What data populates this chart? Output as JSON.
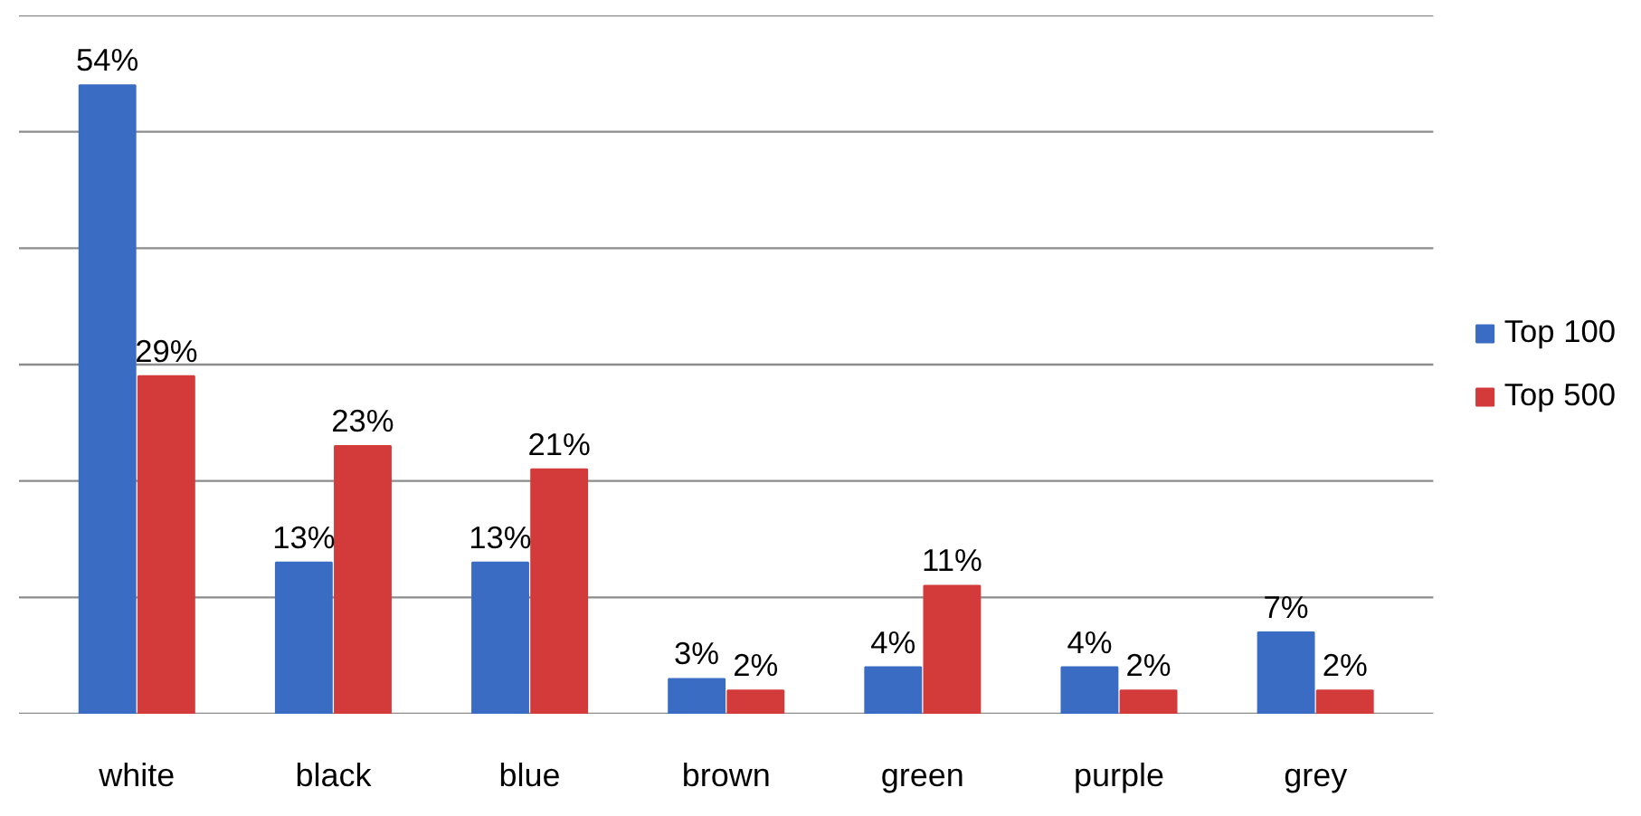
{
  "chart_data": {
    "type": "bar",
    "categories": [
      "white",
      "black",
      "blue",
      "brown",
      "green",
      "purple",
      "grey"
    ],
    "series": [
      {
        "name": "Top 100",
        "color": "#3a6cc4",
        "values": [
          54,
          13,
          13,
          3,
          4,
          4,
          7
        ],
        "value_labels": [
          "54%",
          "13%",
          "13%",
          "3%",
          "4%",
          "4%",
          "7%"
        ]
      },
      {
        "name": "Top 500",
        "color": "#d33b3b",
        "values": [
          29,
          23,
          21,
          2,
          11,
          2,
          2
        ],
        "value_labels": [
          "29%",
          "23%",
          "21%",
          "2%",
          "11%",
          "2%",
          "2%"
        ]
      }
    ],
    "ylim": [
      0,
      60
    ],
    "yticks": [
      {
        "value": 0,
        "label": null
      },
      {
        "value": 10,
        "label": null
      },
      {
        "value": 20,
        "label": null
      },
      {
        "value": 30,
        "label": null
      },
      {
        "value": 40,
        "label": null
      },
      {
        "value": 50,
        "label": null
      },
      {
        "value": 60,
        "label": null
      }
    ],
    "grid": "y",
    "legend": "right",
    "tick_labels": "x"
  }
}
